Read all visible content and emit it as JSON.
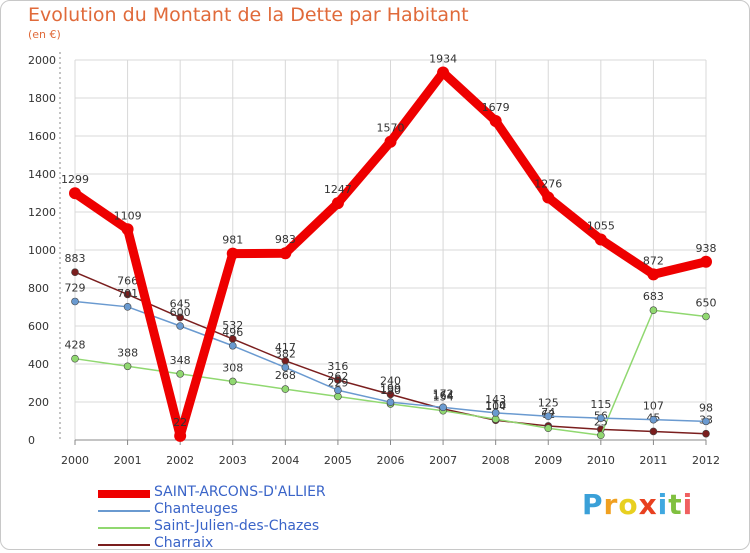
{
  "header": {
    "title": "Evolution du Montant de la Dette par Habitant",
    "subtitle": "(en €)"
  },
  "logo": {
    "letters": [
      "P",
      "r",
      "o",
      "x",
      "i",
      "t",
      "i"
    ],
    "colors": [
      "#3aa0d8",
      "#f0a020",
      "#e8d020",
      "#e84020",
      "#40a8e0",
      "#80c040",
      "#f06060"
    ]
  },
  "colors": {
    "grid": "#d8d8d8",
    "axis": "#888888",
    "tick_text": "#333333",
    "value_text": "#333333",
    "title": "#e06a3a",
    "legend_text": "#3a64c8"
  },
  "chart_data": {
    "type": "line",
    "title": "Evolution du Montant de la Dette par Habitant",
    "subtitle": "(en €)",
    "x": [
      "2000",
      "2001",
      "2002",
      "2003",
      "2004",
      "2005",
      "2006",
      "2007",
      "2008",
      "2009",
      "2010",
      "2011",
      "2012"
    ],
    "ylim": [
      0,
      2000
    ],
    "yticks": [
      "0",
      "200",
      "400",
      "600",
      "800",
      "1000",
      "1200",
      "1400",
      "1600",
      "1800",
      "2000"
    ],
    "grid": true,
    "legend_position": "bottom-left",
    "series": [
      {
        "name": "Charraix",
        "color": "#7a1e1e",
        "values": [
          883,
          766,
          645,
          532,
          417,
          316,
          240,
          164,
          104,
          74,
          56,
          45,
          33
        ],
        "labels": [
          "883",
          "766",
          "645",
          "532",
          "417",
          "316",
          "240",
          "164",
          "104",
          "74",
          "56",
          "45",
          "33"
        ]
      },
      {
        "name": "Saint-Julien-des-Chazes",
        "color": "#90d870",
        "values": [
          428,
          388,
          348,
          308,
          268,
          229,
          190,
          154,
          110,
          62,
          25,
          683,
          650
        ],
        "labels": [
          "428",
          "388",
          "348",
          "308",
          "268",
          "229",
          "190",
          "154",
          "110",
          "62",
          "25",
          "683",
          "650"
        ]
      },
      {
        "name": "Chanteuges",
        "color": "#6a9ad0",
        "values": [
          729,
          701,
          600,
          496,
          382,
          262,
          199,
          172,
          143,
          125,
          115,
          107,
          98
        ],
        "labels": [
          "729",
          "701",
          "600",
          "496",
          "382",
          "262",
          "199",
          "172",
          "143",
          "125",
          "115",
          "107",
          "98"
        ]
      },
      {
        "name": "SAINT-ARCONS-D'ALLIER",
        "color": "#ee0000",
        "values": [
          1299,
          1109,
          22,
          981,
          983,
          1247,
          1570,
          1934,
          1679,
          1276,
          1055,
          872,
          938
        ],
        "labels": [
          "1299",
          "1109",
          "22",
          "981",
          "983",
          "1247",
          "1570",
          "1934",
          "1679",
          "1276",
          "1055",
          "872",
          "938"
        ]
      }
    ],
    "legend": [
      "SAINT-ARCONS-D'ALLIER",
      "Chanteuges",
      "Saint-Julien-des-Chazes",
      "Charraix"
    ]
  }
}
